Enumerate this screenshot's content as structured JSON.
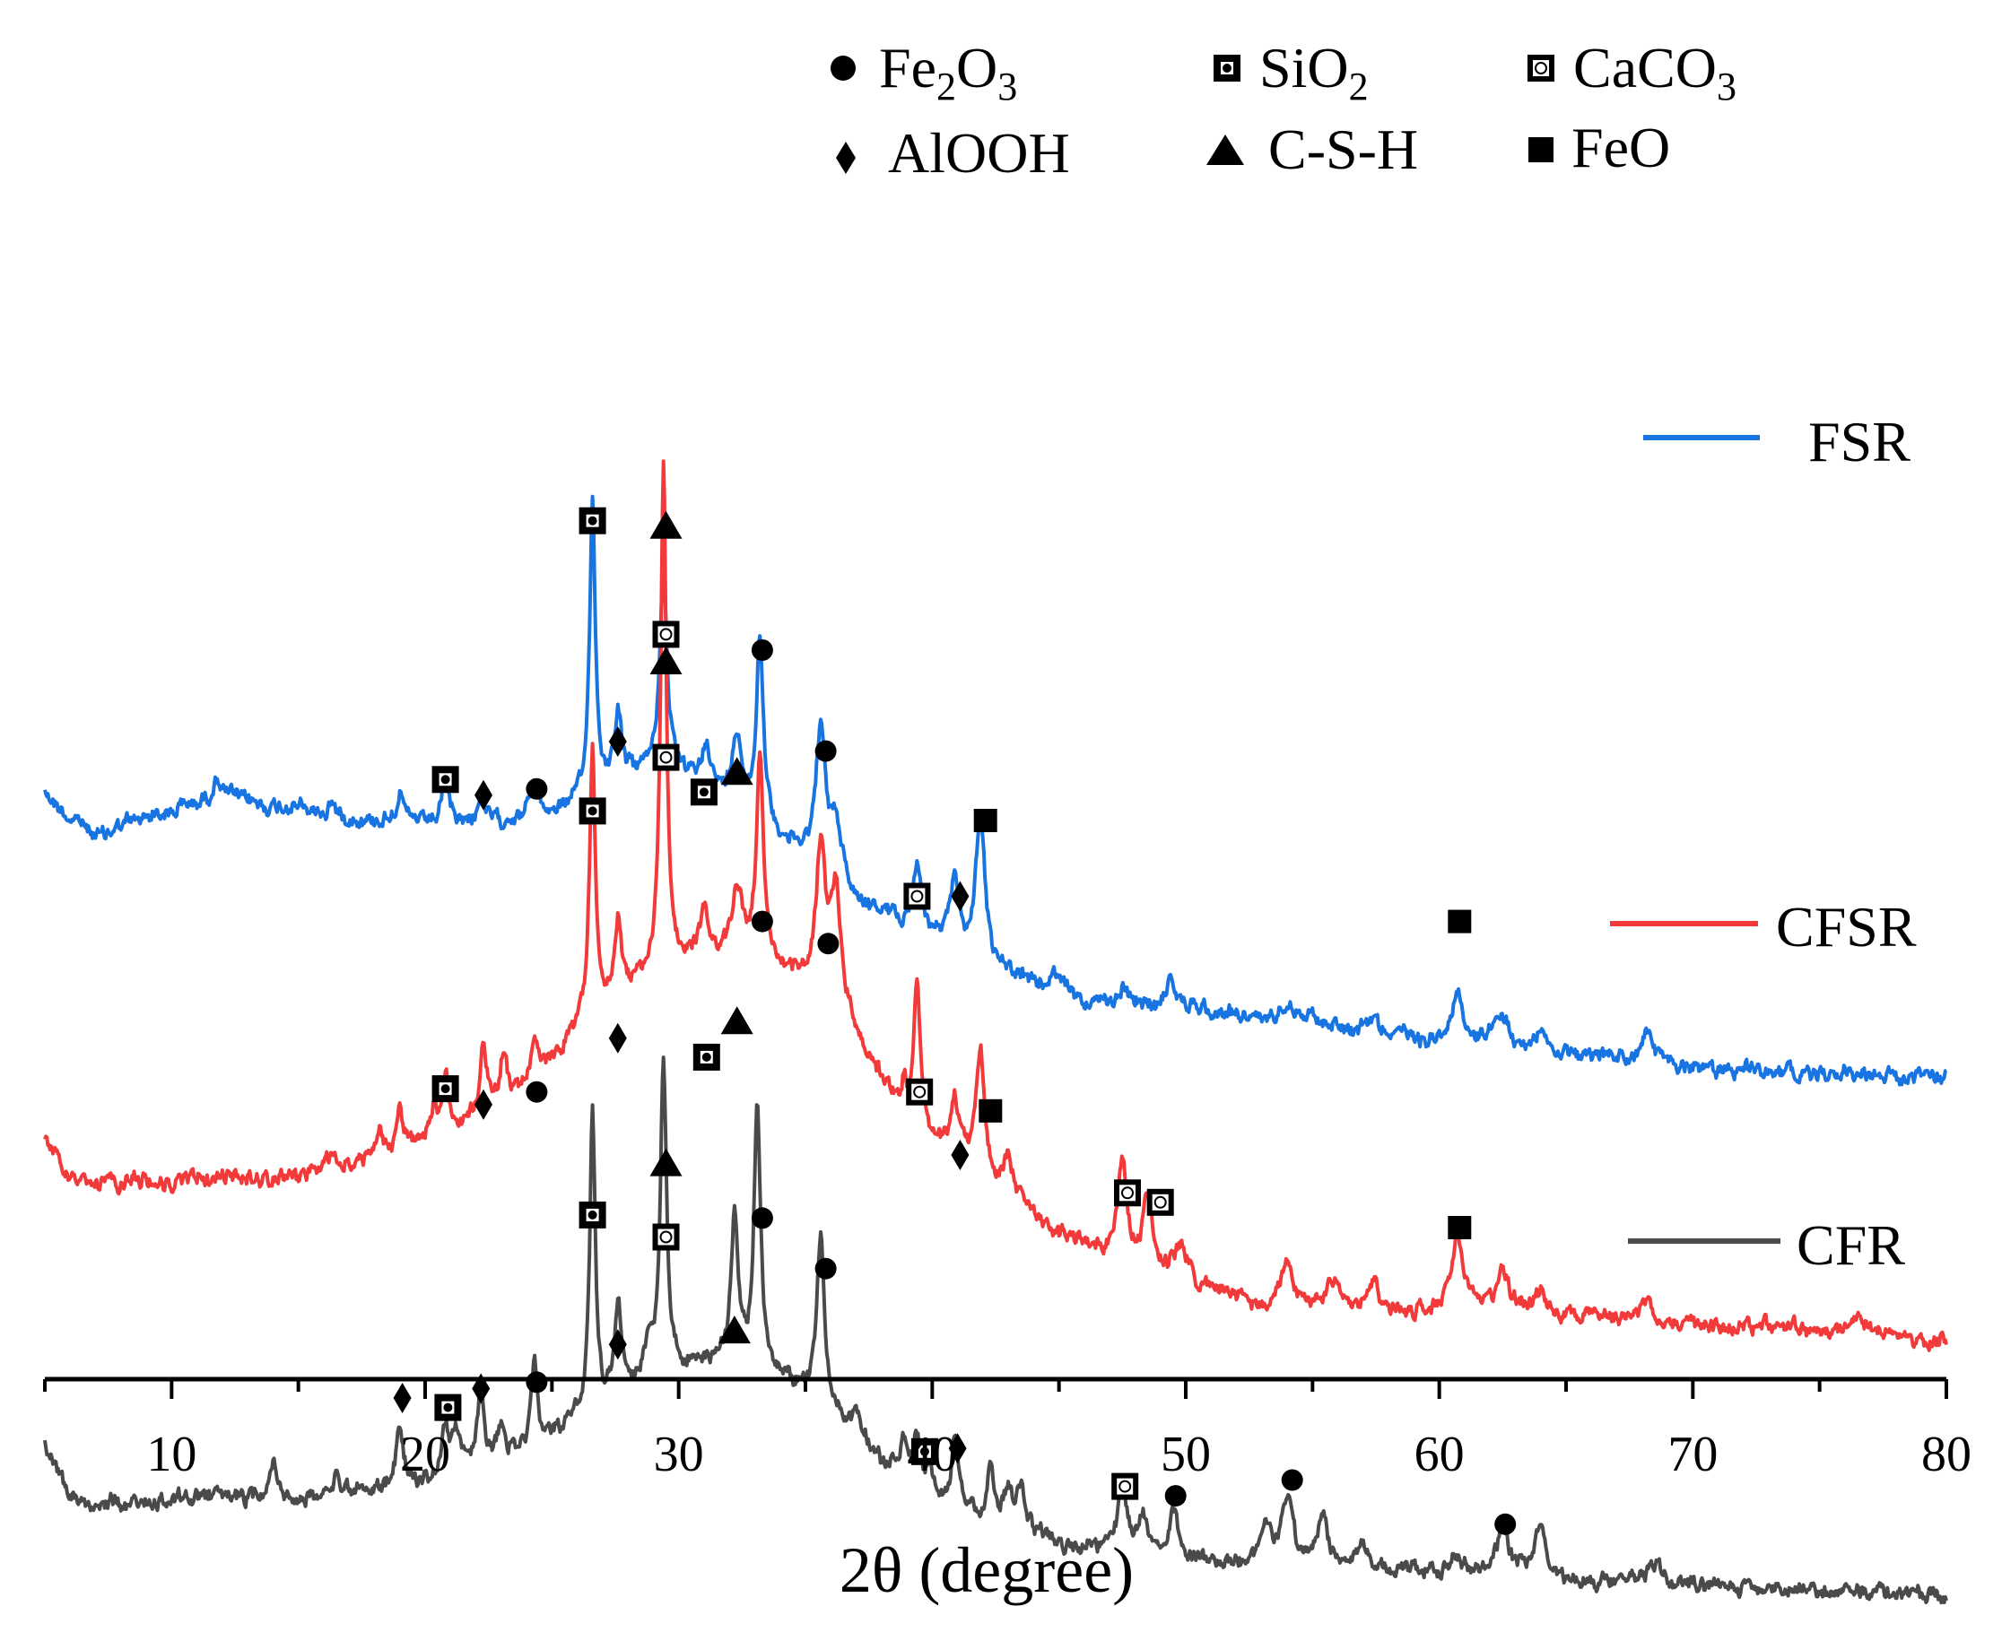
{
  "chart_data": {
    "type": "line",
    "title": "",
    "xlabel": "2θ (degree)",
    "ylabel": "",
    "xlim": [
      5,
      80
    ],
    "x_ticks": [
      10,
      20,
      30,
      40,
      50,
      60,
      70,
      80
    ],
    "y_axis_visible": false,
    "grid": false,
    "legend_position": "right",
    "phase_legend": [
      {
        "key": "Fe2O3",
        "marker": "circle",
        "label": "Fe",
        "sub1": "2",
        "mid": "O",
        "sub2": "3"
      },
      {
        "key": "SiO2",
        "marker": "square-dot",
        "label": "SiO",
        "sub1": "2",
        "mid": "",
        "sub2": ""
      },
      {
        "key": "CaCO3",
        "marker": "square-ring",
        "label": "CaCO",
        "sub1": "3",
        "mid": "",
        "sub2": ""
      },
      {
        "key": "AlOOH",
        "marker": "diamond",
        "label": "AlOOH",
        "sub1": "",
        "mid": "",
        "sub2": ""
      },
      {
        "key": "C-S-H",
        "marker": "triangle",
        "label": "C-S-H",
        "sub1": "",
        "mid": "",
        "sub2": ""
      },
      {
        "key": "FeO",
        "marker": "square",
        "label": "FeO",
        "sub1": "",
        "mid": "",
        "sub2": ""
      }
    ],
    "series": [
      {
        "name": "FSR",
        "color": "#1874e0",
        "baseline": [
          [
            5,
            1250
          ],
          [
            6,
            1300
          ],
          [
            7,
            1320
          ],
          [
            10,
            1280
          ],
          [
            12,
            1265
          ],
          [
            15,
            1285
          ],
          [
            18,
            1300
          ],
          [
            22,
            1310
          ],
          [
            25,
            1290
          ],
          [
            27,
            1250
          ],
          [
            29,
            1220
          ],
          [
            31,
            1250
          ],
          [
            33,
            1300
          ],
          [
            35,
            1360
          ],
          [
            37,
            1430
          ],
          [
            40,
            1490
          ],
          [
            43,
            1545
          ],
          [
            46,
            1590
          ],
          [
            50,
            1600
          ],
          [
            55,
            1620
          ],
          [
            60,
            1650
          ],
          [
            65,
            1670
          ],
          [
            70,
            1690
          ],
          [
            75,
            1700
          ],
          [
            80,
            1705
          ]
        ],
        "peaks": [
          [
            11.8,
            30,
            0.25
          ],
          [
            16.3,
            20,
            0.15
          ],
          [
            19.0,
            45,
            0.15
          ],
          [
            20.8,
            55,
            0.18
          ],
          [
            22.2,
            45,
            0.18
          ],
          [
            24.3,
            60,
            0.2
          ],
          [
            26.6,
            470,
            0.13
          ],
          [
            27.6,
            110,
            0.17
          ],
          [
            29.4,
            320,
            0.17
          ],
          [
            31.1,
            75,
            0.2
          ],
          [
            32.3,
            110,
            0.22
          ],
          [
            33.2,
            300,
            0.16
          ],
          [
            35.6,
            220,
            0.22
          ],
          [
            36.2,
            90,
            0.25
          ],
          [
            39.4,
            100,
            0.22
          ],
          [
            40.9,
            115,
            0.2
          ],
          [
            41.9,
            235,
            0.22
          ],
          [
            44.8,
            30,
            0.3
          ],
          [
            47.5,
            35,
            0.25
          ],
          [
            49.4,
            50,
            0.25
          ],
          [
            54.0,
            30,
            0.4
          ],
          [
            57.4,
            25,
            0.3
          ],
          [
            60.7,
            90,
            0.25
          ],
          [
            62.5,
            40,
            0.4
          ],
          [
            64.0,
            25,
            0.3
          ],
          [
            68.2,
            50,
            0.25
          ]
        ],
        "markers": [
          {
            "x": 20.8,
            "y": 1235,
            "phase": "SiO2"
          },
          {
            "x": 22.3,
            "y": 1260,
            "phase": "AlOOH"
          },
          {
            "x": 24.4,
            "y": 1250,
            "phase": "Fe2O3"
          },
          {
            "x": 26.6,
            "y": 825,
            "phase": "SiO2"
          },
          {
            "x": 29.5,
            "y": 835,
            "phase": "C-S-H"
          },
          {
            "x": 29.5,
            "y": 1005,
            "phase": "CaCO3"
          },
          {
            "x": 27.6,
            "y": 1175,
            "phase": "AlOOH"
          },
          {
            "x": 31.0,
            "y": 1255,
            "phase": "SiO2"
          },
          {
            "x": 32.3,
            "y": 1225,
            "phase": "C-S-H"
          },
          {
            "x": 33.3,
            "y": 1030,
            "phase": "Fe2O3"
          },
          {
            "x": 35.8,
            "y": 1190,
            "phase": "Fe2O3"
          },
          {
            "x": 39.4,
            "y": 1420,
            "phase": "CaCO3"
          },
          {
            "x": 41.1,
            "y": 1420,
            "phase": "AlOOH"
          },
          {
            "x": 42.1,
            "y": 1300,
            "phase": "FeO"
          },
          {
            "x": 60.8,
            "y": 1460,
            "phase": "FeO"
          }
        ]
      },
      {
        "name": "CFSR",
        "color": "#f23a3a",
        "baseline": [
          [
            5,
            1800
          ],
          [
            6,
            1870
          ],
          [
            7,
            1880
          ],
          [
            10,
            1875
          ],
          [
            15,
            1865
          ],
          [
            18,
            1840
          ],
          [
            21,
            1790
          ],
          [
            24,
            1730
          ],
          [
            26,
            1630
          ],
          [
            28,
            1560
          ],
          [
            30,
            1530
          ],
          [
            31,
            1520
          ],
          [
            33,
            1520
          ],
          [
            35,
            1560
          ],
          [
            37,
            1650
          ],
          [
            39,
            1780
          ],
          [
            42,
            1880
          ],
          [
            45,
            1950
          ],
          [
            48,
            2000
          ],
          [
            50,
            2030
          ],
          [
            52,
            2060
          ],
          [
            55,
            2070
          ],
          [
            60,
            2080
          ],
          [
            65,
            2090
          ],
          [
            70,
            2100
          ],
          [
            75,
            2110
          ],
          [
            80,
            2120
          ]
        ],
        "peaks": [
          [
            8.5,
            10,
            0.3
          ],
          [
            11.0,
            15,
            0.3
          ],
          [
            16.3,
            15,
            0.2
          ],
          [
            18.2,
            45,
            0.15
          ],
          [
            19.0,
            65,
            0.15
          ],
          [
            20.3,
            45,
            0.15
          ],
          [
            20.8,
            95,
            0.15
          ],
          [
            22.3,
            110,
            0.15
          ],
          [
            23.1,
            75,
            0.15
          ],
          [
            24.3,
            70,
            0.2
          ],
          [
            26.6,
            420,
            0.13
          ],
          [
            27.6,
            120,
            0.15
          ],
          [
            29.4,
            800,
            0.13
          ],
          [
            31.0,
            75,
            0.2
          ],
          [
            32.3,
            110,
            0.22
          ],
          [
            33.2,
            330,
            0.16
          ],
          [
            35.6,
            240,
            0.22
          ],
          [
            36.2,
            190,
            0.25
          ],
          [
            38.9,
            45,
            0.15
          ],
          [
            39.4,
            230,
            0.15
          ],
          [
            40.9,
            90,
            0.2
          ],
          [
            41.9,
            210,
            0.22
          ],
          [
            43.0,
            70,
            0.2
          ],
          [
            47.5,
            155,
            0.2
          ],
          [
            48.5,
            105,
            0.2
          ],
          [
            49.8,
            45,
            0.3
          ],
          [
            54.0,
            65,
            0.3
          ],
          [
            55.8,
            30,
            0.3
          ],
          [
            57.4,
            40,
            0.3
          ],
          [
            60.7,
            120,
            0.25
          ],
          [
            62.5,
            60,
            0.35
          ],
          [
            64.0,
            40,
            0.3
          ],
          [
            68.2,
            30,
            0.3
          ],
          [
            76.5,
            25,
            0.5
          ]
        ],
        "markers": [
          {
            "x": 20.8,
            "y": 1725,
            "phase": "SiO2"
          },
          {
            "x": 22.3,
            "y": 1750,
            "phase": "AlOOH"
          },
          {
            "x": 24.4,
            "y": 1730,
            "phase": "Fe2O3"
          },
          {
            "x": 26.6,
            "y": 1285,
            "phase": "SiO2"
          },
          {
            "x": 27.6,
            "y": 1645,
            "phase": "AlOOH"
          },
          {
            "x": 29.5,
            "y": 1050,
            "phase": "C-S-H"
          },
          {
            "x": 29.5,
            "y": 1200,
            "phase": "CaCO3"
          },
          {
            "x": 31.1,
            "y": 1675,
            "phase": "SiO2"
          },
          {
            "x": 32.3,
            "y": 1620,
            "phase": "C-S-H"
          },
          {
            "x": 33.3,
            "y": 1460,
            "phase": "Fe2O3"
          },
          {
            "x": 35.9,
            "y": 1495,
            "phase": "Fe2O3"
          },
          {
            "x": 39.5,
            "y": 1730,
            "phase": "CaCO3"
          },
          {
            "x": 41.1,
            "y": 1830,
            "phase": "AlOOH"
          },
          {
            "x": 42.3,
            "y": 1760,
            "phase": "FeO"
          },
          {
            "x": 47.7,
            "y": 1890,
            "phase": "CaCO3"
          },
          {
            "x": 49.0,
            "y": 1905,
            "phase": "CaCO3"
          },
          {
            "x": 60.8,
            "y": 1945,
            "phase": "FeO"
          }
        ]
      },
      {
        "name": "CFR",
        "color": "#4a4a4a",
        "baseline": [
          [
            5,
            2290
          ],
          [
            6,
            2370
          ],
          [
            7,
            2380
          ],
          [
            10,
            2375
          ],
          [
            15,
            2370
          ],
          [
            18,
            2360
          ],
          [
            21,
            2330
          ],
          [
            24,
            2305
          ],
          [
            26,
            2250
          ],
          [
            28,
            2200
          ],
          [
            30,
            2170
          ],
          [
            32,
            2150
          ],
          [
            34,
            2180
          ],
          [
            36,
            2240
          ],
          [
            38,
            2320
          ],
          [
            40,
            2370
          ],
          [
            43,
            2420
          ],
          [
            46,
            2455
          ],
          [
            50,
            2470
          ],
          [
            55,
            2485
          ],
          [
            60,
            2495
          ],
          [
            65,
            2505
          ],
          [
            70,
            2510
          ],
          [
            75,
            2520
          ],
          [
            80,
            2530
          ]
        ],
        "peaks": [
          [
            14.0,
            55,
            0.15
          ],
          [
            16.5,
            35,
            0.15
          ],
          [
            19.0,
            90,
            0.15
          ],
          [
            20.8,
            60,
            0.15
          ],
          [
            21.2,
            55,
            0.15
          ],
          [
            22.2,
            130,
            0.15
          ],
          [
            23.0,
            50,
            0.15
          ],
          [
            24.3,
            140,
            0.15
          ],
          [
            26.6,
            470,
            0.13
          ],
          [
            27.6,
            140,
            0.15
          ],
          [
            28.8,
            50,
            0.2
          ],
          [
            29.4,
            500,
            0.14
          ],
          [
            32.2,
            220,
            0.16
          ],
          [
            33.1,
            420,
            0.15
          ],
          [
            35.6,
            270,
            0.18
          ],
          [
            37.0,
            30,
            0.3
          ],
          [
            38.9,
            55,
            0.15
          ],
          [
            39.4,
            70,
            0.15
          ],
          [
            39.9,
            50,
            0.15
          ],
          [
            40.9,
            110,
            0.15
          ],
          [
            42.3,
            80,
            0.15
          ],
          [
            43.0,
            55,
            0.2
          ],
          [
            43.5,
            60,
            0.2
          ],
          [
            47.5,
            105,
            0.2
          ],
          [
            48.3,
            65,
            0.2
          ],
          [
            49.5,
            70,
            0.25
          ],
          [
            53.2,
            55,
            0.25
          ],
          [
            54.0,
            110,
            0.25
          ],
          [
            55.4,
            75,
            0.25
          ],
          [
            57.0,
            30,
            0.3
          ],
          [
            60.7,
            35,
            0.3
          ],
          [
            62.5,
            85,
            0.3
          ],
          [
            64.0,
            75,
            0.3
          ],
          [
            68.5,
            20,
            0.4
          ]
        ],
        "markers": [
          {
            "x": 19.1,
            "y": 2215,
            "phase": "AlOOH"
          },
          {
            "x": 20.9,
            "y": 2230,
            "phase": "SiO2"
          },
          {
            "x": 22.2,
            "y": 2200,
            "phase": "AlOOH"
          },
          {
            "x": 24.4,
            "y": 2190,
            "phase": "Fe2O3"
          },
          {
            "x": 26.6,
            "y": 1925,
            "phase": "SiO2"
          },
          {
            "x": 27.6,
            "y": 2130,
            "phase": "AlOOH"
          },
          {
            "x": 29.5,
            "y": 1845,
            "phase": "C-S-H"
          },
          {
            "x": 29.5,
            "y": 1960,
            "phase": "CaCO3"
          },
          {
            "x": 32.2,
            "y": 2110,
            "phase": "C-S-H"
          },
          {
            "x": 33.3,
            "y": 1930,
            "phase": "Fe2O3"
          },
          {
            "x": 35.8,
            "y": 2010,
            "phase": "Fe2O3"
          },
          {
            "x": 39.7,
            "y": 2300,
            "phase": "SiO2"
          },
          {
            "x": 41.0,
            "y": 2295,
            "phase": "AlOOH"
          },
          {
            "x": 47.6,
            "y": 2355,
            "phase": "CaCO3"
          },
          {
            "x": 49.6,
            "y": 2370,
            "phase": "Fe2O3"
          },
          {
            "x": 54.2,
            "y": 2345,
            "phase": "Fe2O3"
          },
          {
            "x": 62.6,
            "y": 2415,
            "phase": "Fe2O3"
          }
        ]
      }
    ]
  }
}
